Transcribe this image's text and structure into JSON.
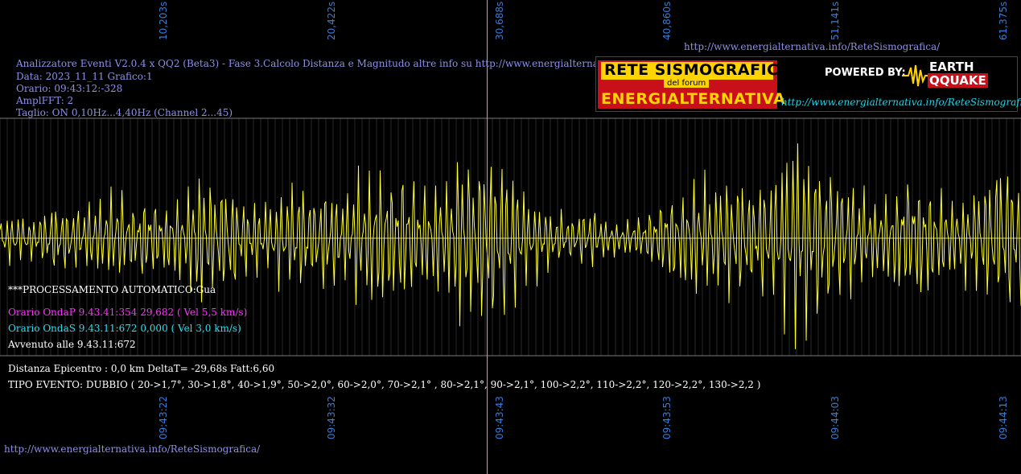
{
  "header": {
    "line1": "Analizzatore Eventi V2.0.4 x QQ2 (Beta3) - Fase 3.Calcolo Distanza e Magnitudo altre info su http://www.energialternativa.info/ReteSism",
    "line2": "Data: 2023_11_11 Grafico:1",
    "line3": "Orario: 09:43:12:-328",
    "line4": "AmplFFT: 2",
    "line5": "Taglio: ON 0,10Hz...4,40Hz      (Channel 2...45)"
  },
  "url_top": "http://www.energialternativa.info/ReteSismografica/",
  "url_bottom": "http://www.energialternativa.info/ReteSismografica/",
  "logo": {
    "title1": "RETE SISMOGRAFICA",
    "title2": "del forum",
    "title3": "ENERGIALTERNATIVA",
    "powered": "POWERED BY:",
    "brand1": "EARTH",
    "brand2": "QQUAKE",
    "link": "http://www.energialternativa.info/ReteSismografica"
  },
  "info": {
    "processing": "***PROCESSAMENTO AUTOMATICO:Gua",
    "p_wave": "Orario OndaP 9.43.41:354  29,682 ( Vel 5,5 km/s)",
    "s_wave": "Orario OndaS 9.43.11:672  0,000 ( Vel 3,0 km/s)",
    "occurred": "Avvenuto alle 9.43.11:672",
    "distance": "Distanza Epicentro : 0,0 km DeltaT= -29,68s  Fatt:6,60",
    "event_type": "TIPO EVENTO: DUBBIO ( 20->1,7°, 30->1,8°, 40->1,9°, 50->2,0°, 60->2,0°, 70->2,1° , 80->2,1°, 90->2,1°, 100->2,2°, 110->2,2°, 120->2,2°, 130->2,2 )"
  },
  "colors": {
    "trace": "#ffff33",
    "grid": "#7a7a7a",
    "marker": "#ff88aa",
    "tick_label": "#3a7bd5"
  },
  "chart_data": {
    "type": "line",
    "x_unit": "s",
    "top_ticks": [
      "10,203s",
      "20,422s",
      "30,688s",
      "40,860s",
      "51,141s",
      "61,375s"
    ],
    "bottom_ticks": [
      "09:43:22",
      "09:43:32",
      "09:43:43",
      "09:43:53",
      "09:44:03",
      "09:44:13"
    ],
    "xlim": [
      0,
      62.2
    ],
    "ylim": [
      -1,
      1
    ],
    "marker_x": 29.682,
    "series": [
      {
        "x": [
          0,
          1,
          2,
          3,
          4,
          5,
          6,
          7,
          8,
          9,
          10,
          11,
          12,
          13,
          14,
          15,
          16,
          17,
          18,
          19,
          20,
          21,
          22,
          23,
          24,
          25,
          26,
          27,
          28,
          29,
          30,
          31,
          32,
          33,
          34,
          35,
          36,
          37,
          38,
          39,
          40,
          41,
          42,
          43,
          44,
          45,
          46,
          47,
          48,
          49,
          50,
          51,
          52,
          53,
          54,
          55,
          56,
          57,
          58,
          59,
          60,
          61,
          62
        ],
        "y": [
          0.25,
          0.3,
          0.2,
          0.35,
          0.4,
          0.3,
          0.45,
          0.55,
          0.35,
          0.5,
          0.4,
          0.45,
          0.7,
          0.55,
          0.6,
          0.4,
          0.35,
          0.5,
          0.6,
          0.5,
          0.55,
          0.45,
          0.7,
          0.85,
          0.75,
          0.6,
          0.55,
          0.7,
          0.9,
          0.85,
          1.0,
          0.8,
          0.55,
          0.35,
          0.3,
          0.25,
          0.3,
          0.2,
          0.15,
          0.25,
          0.4,
          0.5,
          0.55,
          0.6,
          0.65,
          0.7,
          0.6,
          0.75,
          0.9,
          1.0,
          0.85,
          0.7,
          0.55,
          0.45,
          0.5,
          0.6,
          0.7,
          0.55,
          0.45,
          0.5,
          0.6,
          0.8,
          0.75
        ]
      }
    ]
  }
}
